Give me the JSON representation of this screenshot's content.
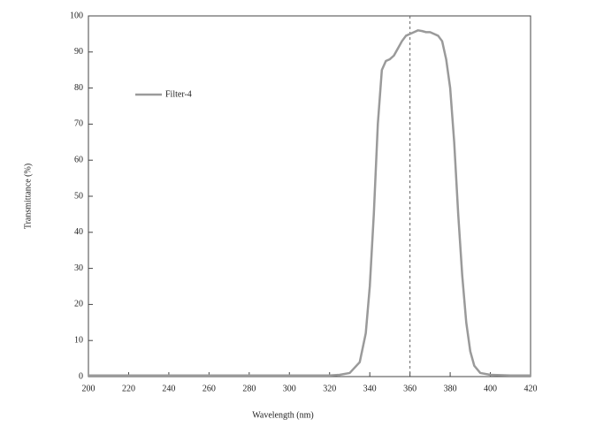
{
  "chart_data": {
    "type": "line",
    "x_label": "Wavelength (nm)",
    "y_label": "Transmittance (%)",
    "x": [
      200,
      220,
      240,
      260,
      280,
      300,
      320,
      325,
      330,
      335,
      338,
      340,
      342,
      344,
      346,
      348,
      350,
      352,
      354,
      356,
      358,
      360,
      362,
      364,
      366,
      368,
      370,
      372,
      374,
      376,
      378,
      380,
      382,
      384,
      386,
      388,
      390,
      392,
      395,
      400,
      410,
      420
    ],
    "series": [
      {
        "name": "Filter-4",
        "color": "#9a9a9a",
        "values": [
          0.3,
          0.3,
          0.3,
          0.3,
          0.3,
          0.3,
          0.3,
          0.5,
          1,
          4,
          12,
          25,
          45,
          70,
          85,
          87.5,
          88,
          89,
          91,
          93,
          94.5,
          95,
          95.5,
          96,
          95.8,
          95.5,
          95.5,
          95,
          94.5,
          93,
          88,
          80,
          65,
          45,
          28,
          15,
          7,
          3,
          1,
          0.5,
          0.3,
          0.3
        ]
      }
    ],
    "reference_line_x": 360,
    "xlim": [
      200,
      420
    ],
    "xticks": [
      200,
      220,
      240,
      260,
      280,
      300,
      320,
      340,
      360,
      380,
      400,
      420
    ],
    "ylim": [
      0,
      100
    ],
    "yticks": [
      0,
      10,
      20,
      30,
      40,
      50,
      60,
      70,
      80,
      90,
      100
    ]
  }
}
